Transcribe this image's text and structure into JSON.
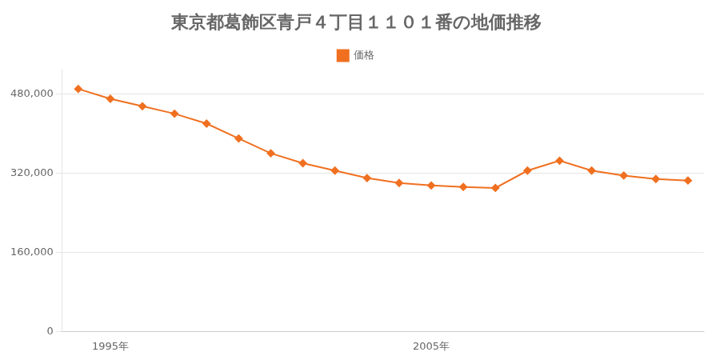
{
  "chart_data": {
    "type": "line",
    "title": "東京都葛飾区青戸４丁目１１０１番の地価推移",
    "x": [
      1994,
      1995,
      1996,
      1997,
      1998,
      1999,
      2000,
      2001,
      2002,
      2003,
      2004,
      2005,
      2006,
      2007,
      2008,
      2009,
      2010,
      2011,
      2012,
      2013
    ],
    "series": [
      {
        "name": "価格",
        "color": "#f07020",
        "marker": "diamond",
        "line_style": "solid",
        "values": [
          490000,
          470000,
          455000,
          440000,
          420000,
          390000,
          360000,
          340000,
          325000,
          310000,
          300000,
          295000,
          292000,
          290000,
          325000,
          345000,
          325000,
          315000,
          308000,
          305000
        ]
      }
    ],
    "xlim": [
      1993.5,
      2013.5
    ],
    "xticks": [
      {
        "value": 1995,
        "label": "1995年"
      },
      {
        "value": 2005,
        "label": "2005年"
      }
    ],
    "ylim": [
      0,
      530000
    ],
    "yticks": [
      0,
      {
        "value": 160000,
        "label": "160,000"
      },
      {
        "value": 320000,
        "label": "320,000"
      },
      {
        "value": 480000,
        "label": "480,000"
      }
    ],
    "grid": "y",
    "legend": "top"
  }
}
